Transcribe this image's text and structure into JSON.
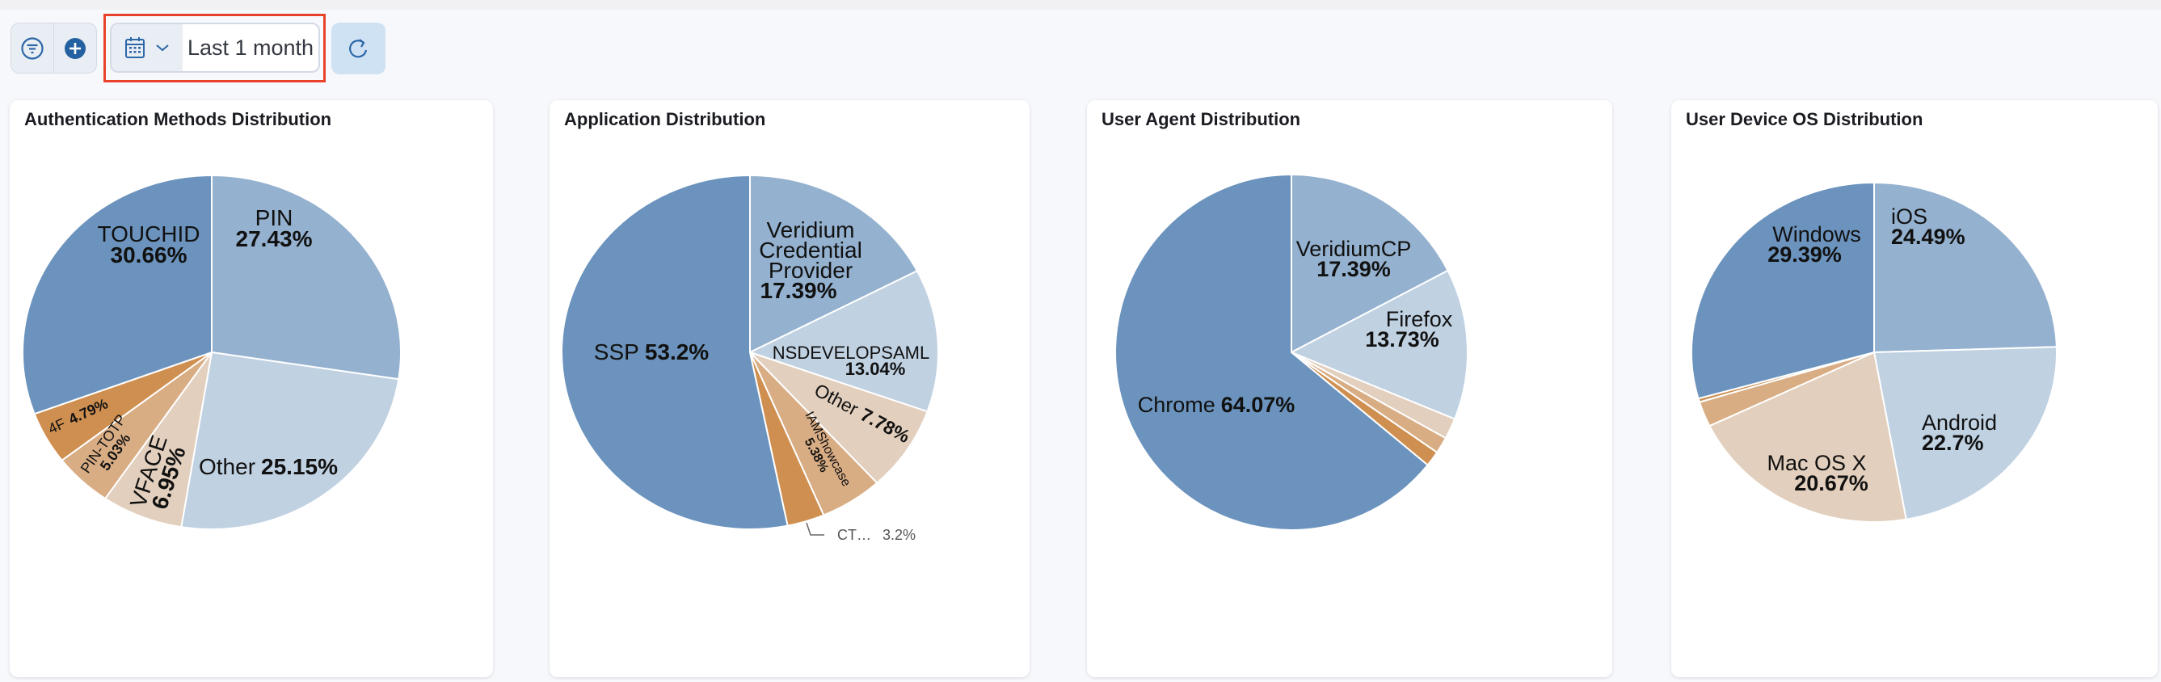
{
  "toolbar": {
    "filter_icon": "filter-icon",
    "add_icon": "plus-circle-icon",
    "calendar_icon": "calendar-icon",
    "chevron_icon": "chevron-down-icon",
    "date_range": "Last 1 month",
    "refresh_icon": "refresh-icon",
    "highlight_color": "#e8432a"
  },
  "palette": [
    "#94b1cf",
    "#c0d1e2",
    "#e2cfbd",
    "#d9ad84",
    "#cf8f50",
    "#6b93bd"
  ],
  "chart_data": [
    {
      "type": "pie",
      "title": "Authentication Methods Distribution",
      "slices": [
        {
          "label": "PIN",
          "pct": "27.43%",
          "value": 27.43,
          "color": "#94b1cf"
        },
        {
          "label": "Other",
          "pct": "25.15%",
          "value": 25.15,
          "color": "#c0d1e2"
        },
        {
          "label": "VFACE",
          "pct": "6.95%",
          "value": 6.95,
          "color": "#e2cfbd"
        },
        {
          "label": "PIN-TOTP",
          "pct": "5.03%",
          "value": 5.03,
          "color": "#d9ad84"
        },
        {
          "label": "4F",
          "pct": "4.79%",
          "value": 4.79,
          "color": "#cf8f50"
        },
        {
          "label": "TOUCHID",
          "pct": "30.66%",
          "value": 30.66,
          "color": "#6b93bd"
        }
      ]
    },
    {
      "type": "pie",
      "title": "Application Distribution",
      "slices": [
        {
          "label": "Veridium Credential Provider",
          "label_lines": [
            "Veridium",
            "Credential",
            "Provider"
          ],
          "pct": "17.39%",
          "value": 17.39,
          "color": "#94b1cf"
        },
        {
          "label": "NSDEVELOPSAML",
          "pct": "13.04%",
          "value": 13.04,
          "color": "#c0d1e2"
        },
        {
          "label": "Other",
          "pct": "7.78%",
          "value": 7.78,
          "color": "#e2cfbd"
        },
        {
          "label": "IAMShowcase",
          "pct": "5.38%",
          "value": 5.38,
          "color": "#d9ad84"
        },
        {
          "label": "CT…",
          "pct": "3.2%",
          "value": 3.2,
          "color": "#cf8f50"
        },
        {
          "label": "SSP",
          "pct": "53.2%",
          "value": 53.2,
          "color": "#6b93bd"
        }
      ]
    },
    {
      "type": "pie",
      "title": "User Agent Distribution",
      "slices": [
        {
          "label": "VeridiumCP",
          "pct": "17.39%",
          "value": 17.39,
          "color": "#94b1cf"
        },
        {
          "label": "Firefox",
          "pct": "13.73%",
          "value": 13.73,
          "color": "#c0d1e2"
        },
        {
          "value": 1.9,
          "color": "#e2cfbd"
        },
        {
          "value": 1.5,
          "color": "#d9ad84"
        },
        {
          "value": 1.41,
          "color": "#cf8f50"
        },
        {
          "label": "Chrome",
          "pct": "64.07%",
          "value": 64.07,
          "color": "#6b93bd"
        }
      ]
    },
    {
      "type": "pie",
      "title": "User Device OS Distribution",
      "slices": [
        {
          "label": "iOS",
          "pct": "24.49%",
          "value": 24.49,
          "color": "#94b1cf"
        },
        {
          "label": "Android",
          "pct": "22.7%",
          "value": 22.7,
          "color": "#c0d1e2"
        },
        {
          "label": "Mac OS X",
          "pct": "20.67%",
          "value": 20.67,
          "color": "#e2cfbd"
        },
        {
          "value": 2.4,
          "color": "#d9ad84"
        },
        {
          "value": 0.35,
          "color": "#cf8f50"
        },
        {
          "label": "Windows",
          "pct": "29.39%",
          "value": 29.39,
          "color": "#6b93bd"
        }
      ]
    }
  ]
}
